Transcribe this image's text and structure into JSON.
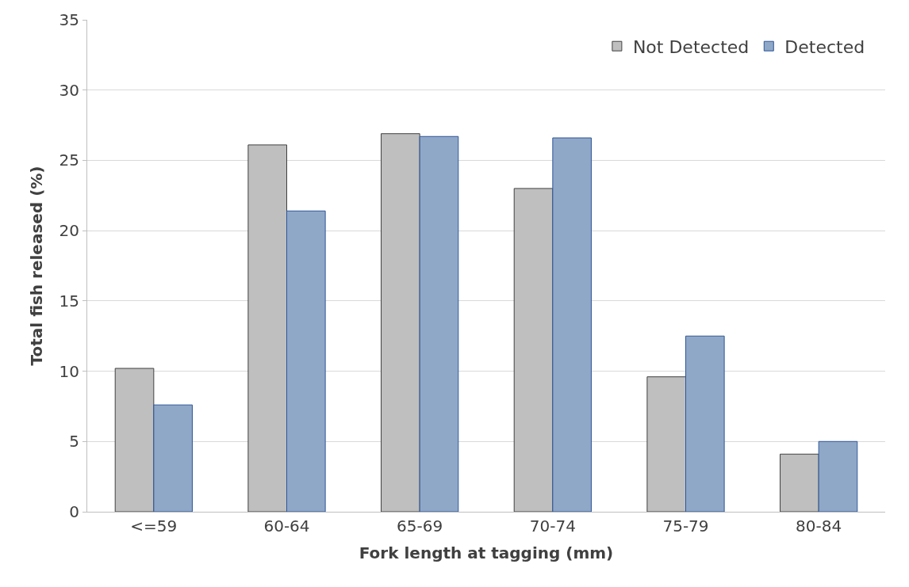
{
  "chart_data": {
    "type": "bar",
    "xlabel": "Fork length at tagging (mm)",
    "ylabel": "Total fish released (%)",
    "categories": [
      "<=59",
      "60-64",
      "65-69",
      "70-74",
      "75-79",
      "80-84"
    ],
    "series": [
      {
        "name": "Not Detected",
        "color": "#bfbfbf",
        "values": [
          10.2,
          26.1,
          26.9,
          23.0,
          9.6,
          4.1
        ]
      },
      {
        "name": "Detected",
        "color": "#8fa8c8",
        "values": [
          7.6,
          21.4,
          26.7,
          26.6,
          12.5,
          5.0
        ]
      }
    ],
    "ylim": [
      0,
      35
    ],
    "yticks": [
      0,
      5,
      10,
      15,
      20,
      25,
      30,
      35
    ],
    "grid": "y",
    "legend": "top right"
  }
}
